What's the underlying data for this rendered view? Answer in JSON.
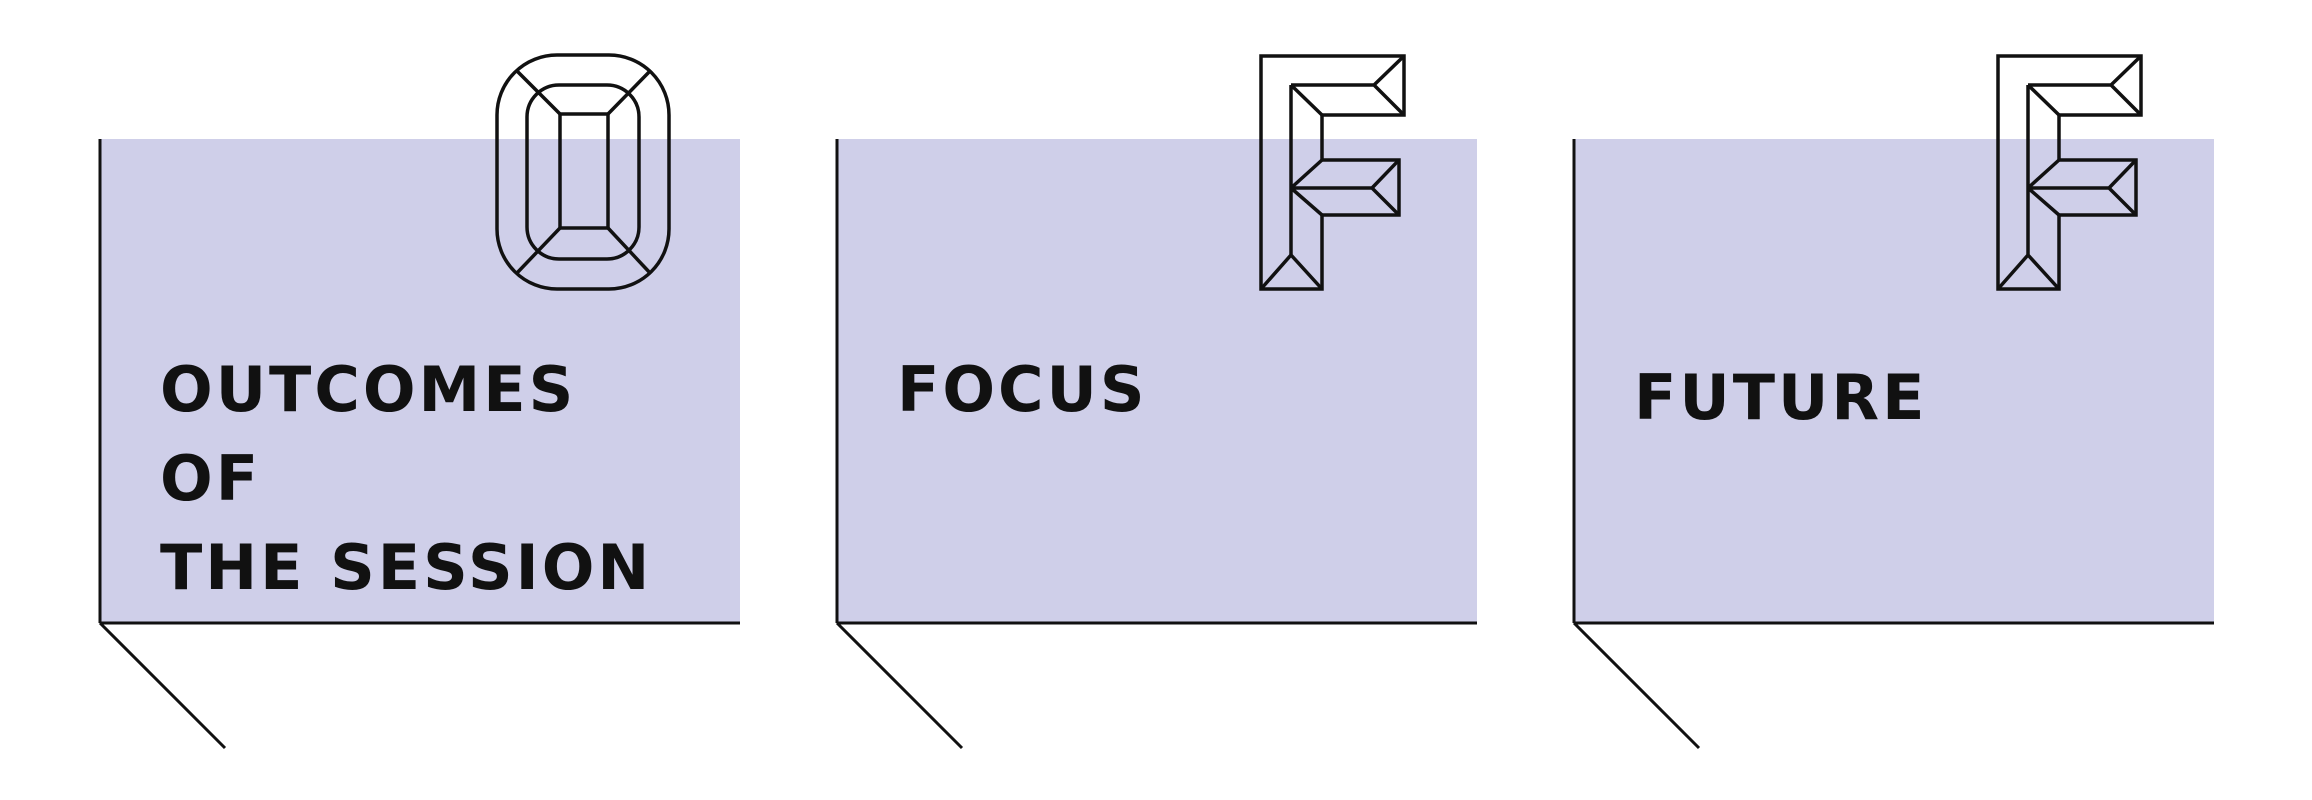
{
  "colors": {
    "card_fill": "#cfcfe9",
    "line": "#111111",
    "background": "#ffffff"
  },
  "cards": [
    {
      "title": "OUTCOMES OF\nTHE SESSION",
      "letter_icon": "letter-o-icon"
    },
    {
      "title": "FOCUS",
      "letter_icon": "letter-f-icon"
    },
    {
      "title": "FUTURE",
      "letter_icon": "letter-f-icon"
    }
  ]
}
